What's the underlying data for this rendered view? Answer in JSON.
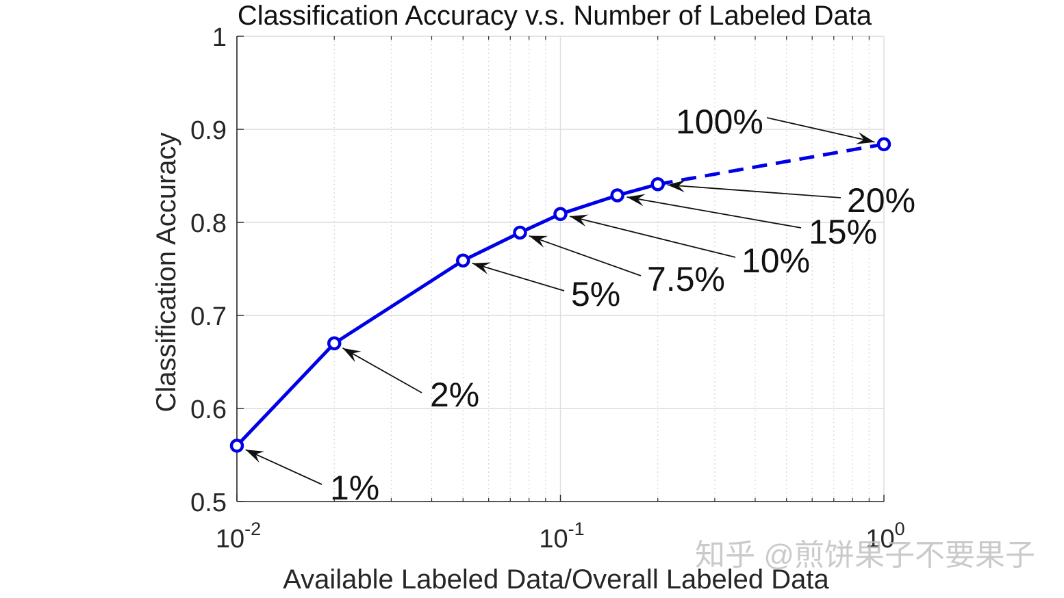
{
  "chart_data": {
    "type": "line",
    "title": "Classification Accuracy v.s. Number of Labeled Data",
    "xlabel": "Available Labeled Data/Overall Labeled Data",
    "ylabel": "Classification Accuracy",
    "xscale": "log",
    "xlim": [
      0.01,
      1
    ],
    "ylim": [
      0.5,
      1
    ],
    "grid": true,
    "x_ticks": [
      {
        "value": 0.01,
        "base": "10",
        "exp": "-2"
      },
      {
        "value": 0.1,
        "base": "10",
        "exp": "-1"
      },
      {
        "value": 1,
        "base": "10",
        "exp": "0"
      }
    ],
    "y_ticks": [
      {
        "value": 0.5,
        "label": "0.5"
      },
      {
        "value": 0.6,
        "label": "0.6"
      },
      {
        "value": 0.7,
        "label": "0.7"
      },
      {
        "value": 0.8,
        "label": "0.8"
      },
      {
        "value": 0.9,
        "label": "0.9"
      },
      {
        "value": 1.0,
        "label": "1"
      }
    ],
    "series": [
      {
        "color": "#0000e6",
        "marker": "circle",
        "points": [
          {
            "x": 0.01,
            "y": 0.56,
            "label": "1%"
          },
          {
            "x": 0.02,
            "y": 0.67,
            "label": "2%"
          },
          {
            "x": 0.05,
            "y": 0.759,
            "label": "5%"
          },
          {
            "x": 0.075,
            "y": 0.789,
            "label": "7.5%"
          },
          {
            "x": 0.1,
            "y": 0.809,
            "label": "10%"
          },
          {
            "x": 0.15,
            "y": 0.829,
            "label": "15%"
          },
          {
            "x": 0.2,
            "y": 0.841,
            "label": "20%"
          },
          {
            "x": 1.0,
            "y": 0.884,
            "label": "100%"
          }
        ],
        "dashed_segment": {
          "from": 0.2,
          "to": 1.0
        }
      }
    ]
  },
  "watermark": "知乎 @煎饼果子不要果子"
}
